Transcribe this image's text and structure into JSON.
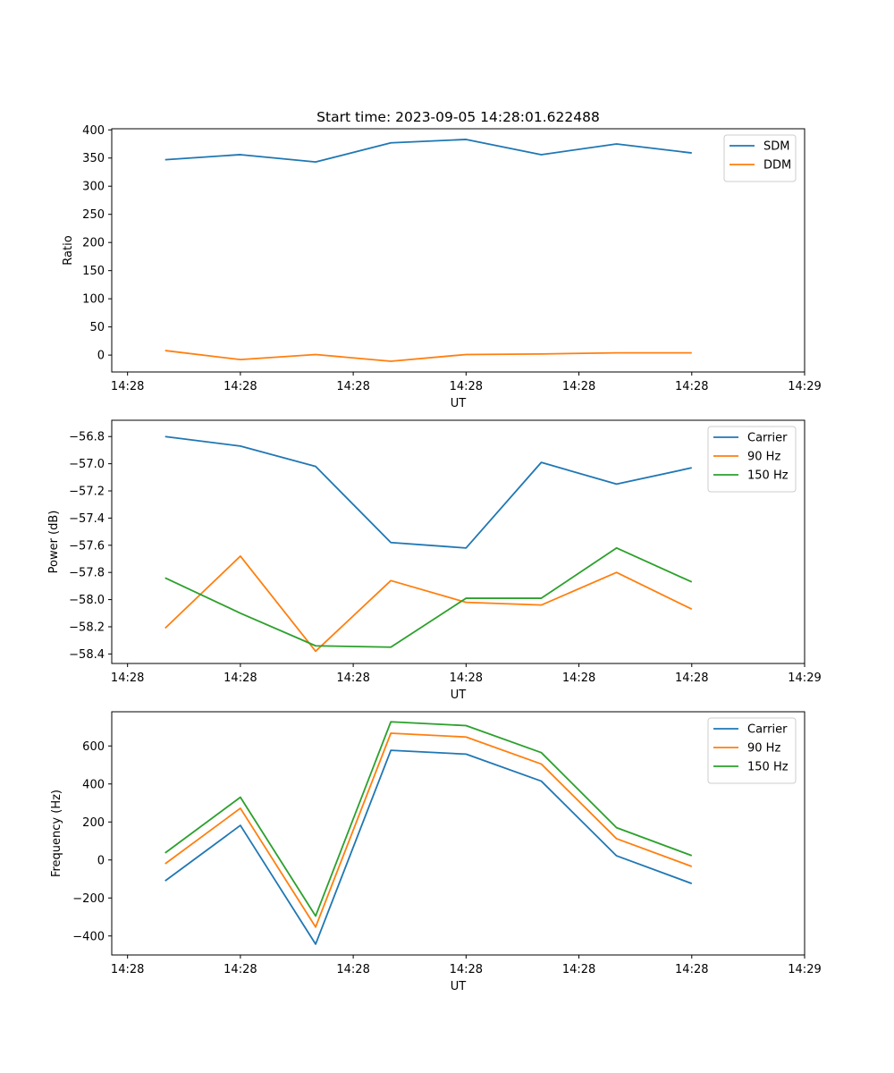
{
  "colors": {
    "blue": "#1f77b4",
    "orange": "#ff7f0e",
    "green": "#2ca02c"
  },
  "chart_data": [
    {
      "type": "line",
      "title": "Start time: 2023-09-05 14:28:01.622488",
      "xlabel": "UT",
      "ylabel": "Ratio",
      "x": [
        1,
        2,
        3,
        4,
        5,
        6,
        7,
        8
      ],
      "xlim": [
        0.29,
        9.5
      ],
      "x_ticks": [
        0.5,
        2.0,
        3.5,
        5.0,
        6.5,
        8.0,
        9.5
      ],
      "x_tick_labels": [
        "14:28",
        "14:28",
        "14:28",
        "14:28",
        "14:28",
        "14:28",
        "14:29"
      ],
      "ylim": [
        -30,
        402
      ],
      "y_ticks": [
        0,
        50,
        100,
        150,
        200,
        250,
        300,
        350,
        400
      ],
      "y_tick_labels": [
        "0",
        "50",
        "100",
        "150",
        "200",
        "250",
        "300",
        "350",
        "400"
      ],
      "legend_position": "top-right",
      "series": [
        {
          "name": "SDM",
          "color": "#1f77b4",
          "values": [
            347,
            356,
            343,
            377,
            383,
            356,
            375,
            359
          ]
        },
        {
          "name": "DDM",
          "color": "#ff7f0e",
          "values": [
            8,
            -8,
            1,
            -11,
            1,
            2,
            4,
            4
          ]
        }
      ]
    },
    {
      "type": "line",
      "title": "",
      "xlabel": "UT",
      "ylabel": "Power (dB)",
      "x": [
        1,
        2,
        3,
        4,
        5,
        6,
        7,
        8
      ],
      "xlim": [
        0.29,
        9.5
      ],
      "x_ticks": [
        0.5,
        2.0,
        3.5,
        5.0,
        6.5,
        8.0,
        9.5
      ],
      "x_tick_labels": [
        "14:28",
        "14:28",
        "14:28",
        "14:28",
        "14:28",
        "14:28",
        "14:29"
      ],
      "ylim": [
        -58.47,
        -56.68
      ],
      "y_ticks": [
        -58.4,
        -58.2,
        -58.0,
        -57.8,
        -57.6,
        -57.4,
        -57.2,
        -57.0,
        -56.8
      ],
      "y_tick_labels": [
        "−58.4",
        "−58.2",
        "−58.0",
        "−57.8",
        "−57.6",
        "−57.4",
        "−57.2",
        "−57.0",
        "−56.8"
      ],
      "legend_position": "top-right",
      "series": [
        {
          "name": "Carrier",
          "color": "#1f77b4",
          "values": [
            -56.8,
            -56.87,
            -57.02,
            -57.58,
            -57.62,
            -56.99,
            -57.15,
            -57.03
          ]
        },
        {
          "name": "90 Hz",
          "color": "#ff7f0e",
          "values": [
            -58.21,
            -57.68,
            -58.38,
            -57.86,
            -58.02,
            -58.04,
            -57.8,
            -58.07
          ]
        },
        {
          "name": "150 Hz",
          "color": "#2ca02c",
          "values": [
            -57.84,
            -58.1,
            -58.34,
            -58.35,
            -57.99,
            -57.99,
            -57.62,
            -57.87
          ]
        }
      ]
    },
    {
      "type": "line",
      "title": "",
      "xlabel": "UT",
      "ylabel": "Frequency (Hz)",
      "x": [
        1,
        2,
        3,
        4,
        5,
        6,
        7,
        8
      ],
      "xlim": [
        0.29,
        9.5
      ],
      "x_ticks": [
        0.5,
        2.0,
        3.5,
        5.0,
        6.5,
        8.0,
        9.5
      ],
      "x_tick_labels": [
        "14:28",
        "14:28",
        "14:28",
        "14:28",
        "14:28",
        "14:28",
        "14:29"
      ],
      "ylim": [
        -500,
        780
      ],
      "y_ticks": [
        -400,
        -200,
        0,
        200,
        400,
        600
      ],
      "y_tick_labels": [
        "−400",
        "−200",
        "0",
        "200",
        "400",
        "600"
      ],
      "legend_position": "top-right",
      "series": [
        {
          "name": "Carrier",
          "color": "#1f77b4",
          "values": [
            -110,
            182,
            -443,
            577,
            557,
            415,
            22,
            -124
          ]
        },
        {
          "name": "90 Hz",
          "color": "#ff7f0e",
          "values": [
            -20,
            272,
            -353,
            667,
            647,
            505,
            112,
            -34
          ]
        },
        {
          "name": "150 Hz",
          "color": "#2ca02c",
          "values": [
            37,
            330,
            -295,
            727,
            707,
            565,
            170,
            23
          ]
        }
      ]
    }
  ]
}
